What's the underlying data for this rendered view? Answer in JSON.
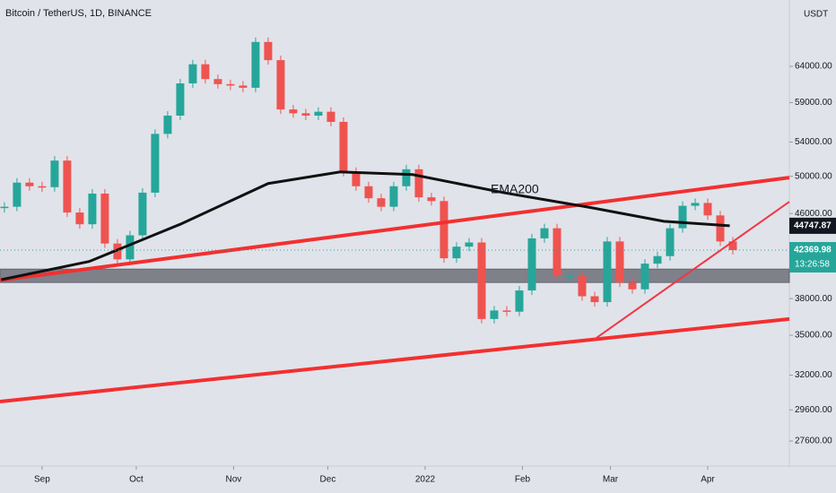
{
  "chart_data": {
    "type": "candlestick",
    "title": "Bitcoin / TetherUS, 1D, BINANCE",
    "currency": "USDT",
    "log_scale": true,
    "up_color": "#26a69a",
    "down_color": "#ef5350",
    "x": [
      -12,
      -8,
      -4,
      0,
      4,
      8,
      12,
      16,
      20,
      24,
      28,
      32,
      36,
      40,
      44,
      48,
      52,
      56,
      60,
      64,
      68,
      72,
      76,
      80,
      84,
      88,
      92,
      96,
      100,
      104,
      108,
      112,
      116,
      120,
      124,
      128,
      132,
      136,
      140,
      144,
      148,
      152,
      156,
      160,
      164,
      168,
      172,
      176,
      180,
      184,
      188,
      192,
      196,
      200,
      204,
      208,
      212,
      216,
      220
    ],
    "close": [
      46700,
      49300,
      48900,
      48800,
      51800,
      46100,
      44900,
      48100,
      43000,
      41500,
      43800,
      48200,
      55000,
      57300,
      61600,
      64300,
      62200,
      61500,
      61300,
      61000,
      67600,
      64900,
      58100,
      57600,
      57300,
      57800,
      56500,
      50500,
      48900,
      47600,
      46700,
      48900,
      50800,
      47700,
      47300,
      41600,
      42700,
      43100,
      36300,
      37000,
      36900,
      38700,
      43500,
      44500,
      40000,
      40000,
      38200,
      37700,
      43200,
      39400,
      38800,
      41100,
      41800,
      44500,
      46800,
      47100,
      45800,
      43200,
      42370
    ],
    "xlim": [
      -13.4,
      238
    ],
    "xticks": [
      {
        "value": 0,
        "label": "Sep"
      },
      {
        "value": 30,
        "label": "Oct"
      },
      {
        "value": 61,
        "label": "Nov"
      },
      {
        "value": 91,
        "label": "Dec"
      },
      {
        "value": 122,
        "label": "2022"
      },
      {
        "value": 153,
        "label": "Feb"
      },
      {
        "value": 181,
        "label": "Mar"
      },
      {
        "value": 212,
        "label": "Apr"
      }
    ],
    "ylim": [
      26090,
      74280
    ],
    "yticks": [
      {
        "value": 64000,
        "label": "64000.00"
      },
      {
        "value": 59000,
        "label": "59000.00"
      },
      {
        "value": 54000,
        "label": "54000.00"
      },
      {
        "value": 50000,
        "label": "50000.00"
      },
      {
        "value": 46000,
        "label": "46000.00"
      },
      {
        "value": 38000,
        "label": "38000.00"
      },
      {
        "value": 35000,
        "label": "35000.00"
      },
      {
        "value": 32000,
        "label": "32000.00"
      },
      {
        "value": 29600,
        "label": "29600.00"
      },
      {
        "value": 27600,
        "label": "27600.00"
      }
    ],
    "ema": {
      "label": "EMA200",
      "color": "#111111",
      "x": [
        -13,
        15,
        44,
        72,
        95,
        118,
        147,
        175,
        198,
        219
      ],
      "values": [
        39650,
        41300,
        44900,
        49200,
        50500,
        50200,
        48200,
        46600,
        45200,
        44750
      ]
    },
    "trendlines": [
      {
        "color": "#f23030",
        "x": [
          -13.4,
          238
        ],
        "values": [
          39600,
          49860
        ]
      },
      {
        "color": "#f23030",
        "x": [
          -13.4,
          238
        ],
        "values": [
          30160,
          36300
        ]
      },
      {
        "color": "#f23645",
        "x": [
          176,
          238
        ],
        "values": [
          34700,
          47230
        ]
      }
    ],
    "zone": [
      40600,
      39400
    ],
    "ema_tag": 44747.87,
    "last_price": 42369.98,
    "countdown": "13:26:58"
  }
}
